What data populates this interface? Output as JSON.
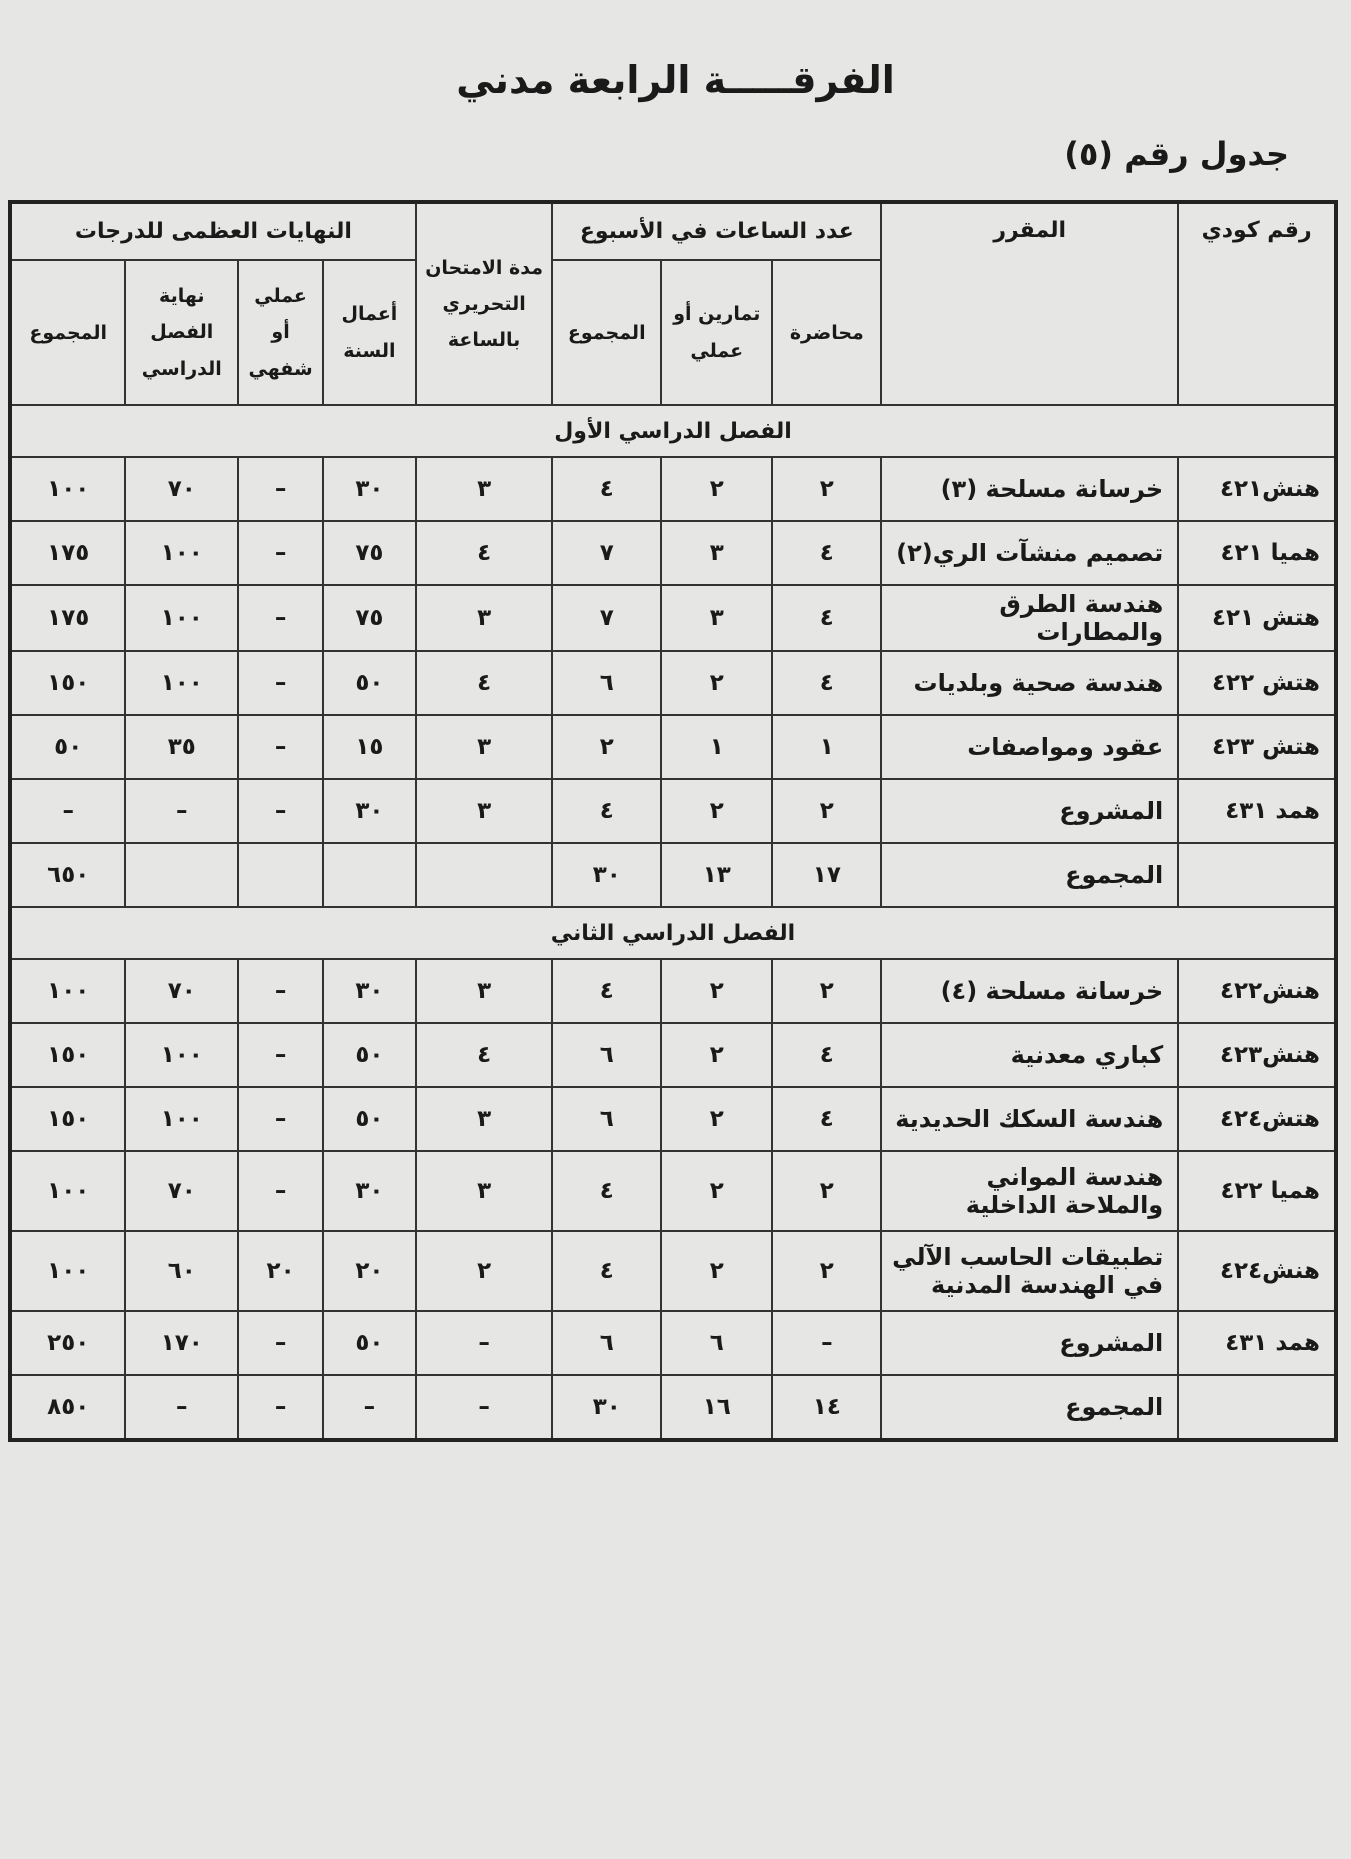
{
  "header": {
    "title": "الفرقـــــة الرابعة مدني",
    "table_label": "جدول رقم (٥)"
  },
  "table": {
    "columns": {
      "code": "رقم كودي",
      "course": "المقرر",
      "hours": {
        "title": "عدد الساعات في الأسبوع",
        "lecture": "محاضرة",
        "exercises": "تمارين أو عملي",
        "total": "المجموع"
      },
      "exam": "مدة الامتحان التحريري بالساعة",
      "grades": {
        "title": "النهايات العظمى للدرجات",
        "year_work": "أعمال السنة",
        "oral": "عملي أو شفهي",
        "final": "نهاية الفصل الدراسي",
        "total": "المجموع"
      }
    },
    "sections": [
      {
        "title": "الفصل الدراسي الأول",
        "rows": [
          [
            "هنش٤٢١",
            "خرسانة مسلحة (٣)",
            "٢",
            "٢",
            "٤",
            "٣",
            "٣٠",
            "–",
            "٧٠",
            "١٠٠"
          ],
          [
            "هميا ٤٢١",
            "تصميم منشآت الري(٢)",
            "٤",
            "٣",
            "٧",
            "٤",
            "٧٥",
            "–",
            "١٠٠",
            "١٧٥"
          ],
          [
            "هتش ٤٢١",
            "هندسة الطرق والمطارات",
            "٤",
            "٣",
            "٧",
            "٣",
            "٧٥",
            "–",
            "١٠٠",
            "١٧٥"
          ],
          [
            "هتش ٤٢٢",
            "هندسة صحية وبلديات",
            "٤",
            "٢",
            "٦",
            "٤",
            "٥٠",
            "–",
            "١٠٠",
            "١٥٠"
          ],
          [
            "هتش ٤٢٣",
            "عقود ومواصفات",
            "١",
            "١",
            "٢",
            "٣",
            "١٥",
            "–",
            "٣٥",
            "٥٠"
          ],
          [
            "همد ٤٣١",
            "المشروع",
            "٢",
            "٢",
            "٤",
            "٣",
            "٣٠",
            "–",
            "–",
            "–"
          ],
          [
            null,
            "المجموع",
            "١٧",
            "١٣",
            "٣٠",
            null,
            null,
            null,
            null,
            "٦٥٠"
          ]
        ]
      },
      {
        "title": "الفصل الدراسي الثاني",
        "rows": [
          [
            "هنش٤٢٢",
            "خرسانة مسلحة (٤)",
            "٢",
            "٢",
            "٤",
            "٣",
            "٣٠",
            "–",
            "٧٠",
            "١٠٠"
          ],
          [
            "هنش٤٢٣",
            "كباري معدنية",
            "٤",
            "٢",
            "٦",
            "٤",
            "٥٠",
            "–",
            "١٠٠",
            "١٥٠"
          ],
          [
            "هتش٤٢٤",
            "هندسة السكك الحديدية",
            "٤",
            "٢",
            "٦",
            "٣",
            "٥٠",
            "–",
            "١٠٠",
            "١٥٠"
          ],
          [
            "هميا ٤٢٢",
            "هندسة المواني والملاحة الداخلية",
            "٢",
            "٢",
            "٤",
            "٣",
            "٣٠",
            "–",
            "٧٠",
            "١٠٠"
          ],
          [
            "هنش٤٢٤",
            "تطبيقات الحاسب الآلي في الهندسة المدنية",
            "٢",
            "٢",
            "٤",
            "٢",
            "٢٠",
            "٢٠",
            "٦٠",
            "١٠٠"
          ],
          [
            "همد ٤٣١",
            "المشروع",
            "–",
            "٦",
            "٦",
            "–",
            "٥٠",
            "–",
            "١٧٠",
            "٢٥٠"
          ],
          [
            null,
            "المجموع",
            "١٤",
            "١٦",
            "٣٠",
            "–",
            "–",
            "–",
            "–",
            "٨٥٠"
          ]
        ]
      }
    ]
  }
}
